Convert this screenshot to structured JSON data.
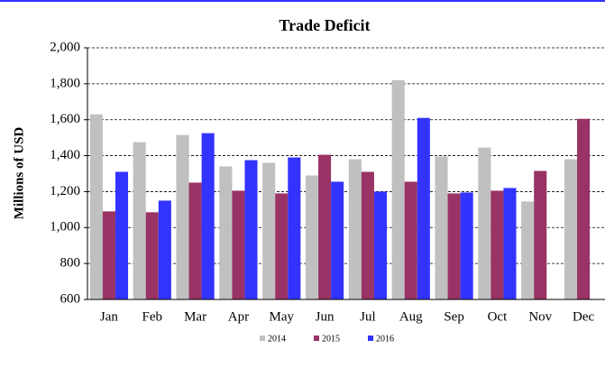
{
  "chart_data": {
    "type": "bar",
    "title": "Trade Deficit",
    "y_label": "Millions of USD",
    "categories": [
      "Jan",
      "Feb",
      "Mar",
      "Apr",
      "May",
      "Jun",
      "Jul",
      "Aug",
      "Sep",
      "Oct",
      "Nov",
      "Dec"
    ],
    "series": [
      {
        "name": "2014",
        "color": "#c0c0c0",
        "values": [
          1630,
          1475,
          1515,
          1340,
          1360,
          1290,
          1380,
          1820,
          1395,
          1445,
          1145,
          1380
        ]
      },
      {
        "name": "2015",
        "color": "#993366",
        "values": [
          1090,
          1085,
          1250,
          1205,
          1190,
          1405,
          1310,
          1255,
          1190,
          1205,
          1315,
          1605
        ]
      },
      {
        "name": "2016",
        "color": "#3333ff",
        "values": [
          1310,
          1150,
          1525,
          1375,
          1390,
          1255,
          1200,
          1610,
          1195,
          1220,
          null,
          null
        ]
      }
    ],
    "ylim": [
      600,
      2000
    ],
    "yticks": [
      600,
      800,
      {
        "value": 1000,
        "label": "1,000"
      },
      {
        "value": 1200,
        "label": "1,200"
      },
      {
        "value": 1400,
        "label": "1,400"
      },
      {
        "value": 1600,
        "label": "1,600"
      },
      {
        "value": 1800,
        "label": "1,800"
      },
      {
        "value": 2000,
        "label": "2,000"
      }
    ],
    "grid": true,
    "legend": "bottom"
  }
}
